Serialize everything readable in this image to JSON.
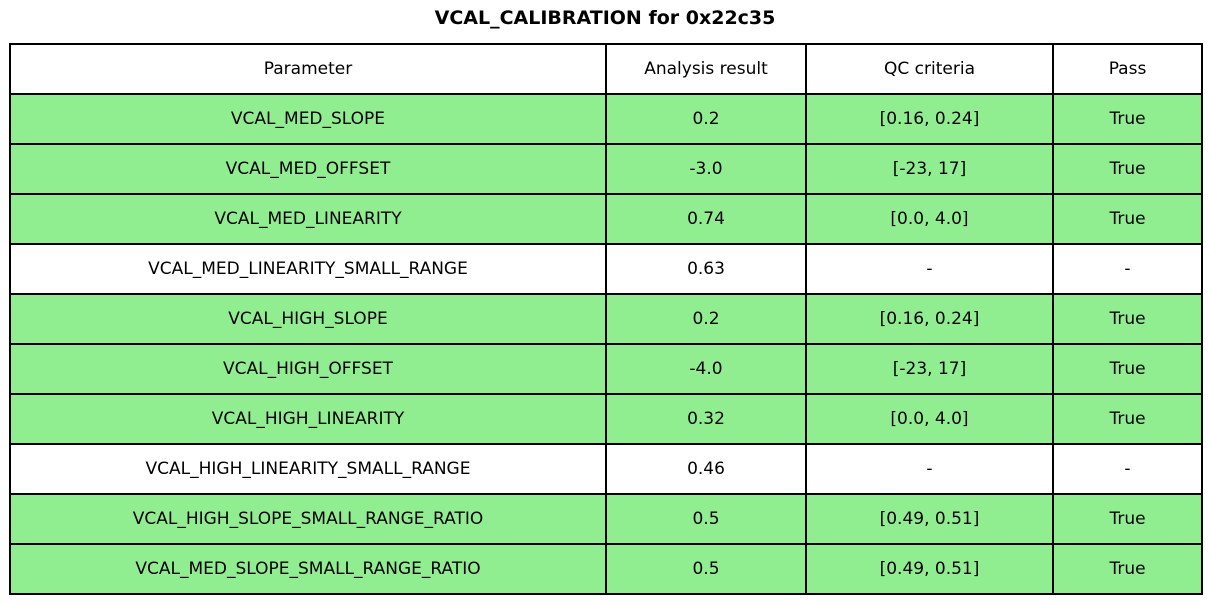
{
  "title": "VCAL_CALIBRATION for 0x22c35",
  "colors": {
    "pass_row_bg": "#90ee90",
    "plain_row_bg": "#ffffff",
    "border": "#000000",
    "text": "#000000"
  },
  "chart_data": {
    "type": "table",
    "title": "VCAL_CALIBRATION for 0x22c35",
    "columns": [
      "Parameter",
      "Analysis result",
      "QC criteria",
      "Pass"
    ],
    "rows": [
      {
        "parameter": "VCAL_MED_SLOPE",
        "result": "0.2",
        "criteria": "[0.16, 0.24]",
        "pass": "True",
        "highlighted": true
      },
      {
        "parameter": "VCAL_MED_OFFSET",
        "result": "-3.0",
        "criteria": "[-23, 17]",
        "pass": "True",
        "highlighted": true
      },
      {
        "parameter": "VCAL_MED_LINEARITY",
        "result": "0.74",
        "criteria": "[0.0, 4.0]",
        "pass": "True",
        "highlighted": true
      },
      {
        "parameter": "VCAL_MED_LINEARITY_SMALL_RANGE",
        "result": "0.63",
        "criteria": "-",
        "pass": "-",
        "highlighted": false
      },
      {
        "parameter": "VCAL_HIGH_SLOPE",
        "result": "0.2",
        "criteria": "[0.16, 0.24]",
        "pass": "True",
        "highlighted": true
      },
      {
        "parameter": "VCAL_HIGH_OFFSET",
        "result": "-4.0",
        "criteria": "[-23, 17]",
        "pass": "True",
        "highlighted": true
      },
      {
        "parameter": "VCAL_HIGH_LINEARITY",
        "result": "0.32",
        "criteria": "[0.0, 4.0]",
        "pass": "True",
        "highlighted": true
      },
      {
        "parameter": "VCAL_HIGH_LINEARITY_SMALL_RANGE",
        "result": "0.46",
        "criteria": "-",
        "pass": "-",
        "highlighted": false
      },
      {
        "parameter": "VCAL_HIGH_SLOPE_SMALL_RANGE_RATIO",
        "result": "0.5",
        "criteria": "[0.49, 0.51]",
        "pass": "True",
        "highlighted": true
      },
      {
        "parameter": "VCAL_MED_SLOPE_SMALL_RANGE_RATIO",
        "result": "0.5",
        "criteria": "[0.49, 0.51]",
        "pass": "True",
        "highlighted": true
      }
    ]
  }
}
